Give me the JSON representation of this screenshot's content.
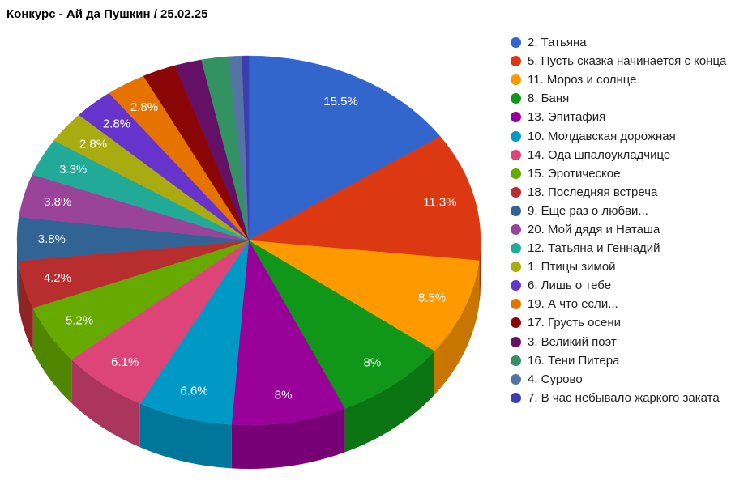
{
  "page": {
    "background": "#FFFFFF"
  },
  "chart_data": {
    "type": "pie",
    "is3D": true,
    "title": "Конкурс - Ай да Пушкин / 25.02.25",
    "legend_position": "right",
    "unit": "%",
    "label_color": "#FFFFFF",
    "legend_text_color": "#222222",
    "slices": [
      {
        "label": "2. Татьяна",
        "value": 15.5,
        "display": "15.5%",
        "color": "#3366CC"
      },
      {
        "label": "5. Пусть сказка начинается с конца",
        "value": 11.3,
        "display": "11.3%",
        "color": "#DC3912"
      },
      {
        "label": "11. Мороз и солнце",
        "value": 8.5,
        "display": "8.5%",
        "color": "#FF9900"
      },
      {
        "label": "8. Баня",
        "value": 8.0,
        "display": "8%",
        "color": "#109618"
      },
      {
        "label": "13. Эпитафия",
        "value": 8.0,
        "display": "8%",
        "color": "#990099"
      },
      {
        "label": "10. Молдавская дорожная",
        "value": 6.6,
        "display": "6.6%",
        "color": "#0099C6"
      },
      {
        "label": "14. Ода шпалоукладчице",
        "value": 6.1,
        "display": "6.1%",
        "color": "#DD4477"
      },
      {
        "label": "15. Эротическое",
        "value": 5.2,
        "display": "5.2%",
        "color": "#66AA00"
      },
      {
        "label": "18. Последняя встреча",
        "value": 4.2,
        "display": "4.2%",
        "color": "#B82E2E"
      },
      {
        "label": "9. Еще раз о любви...",
        "value": 3.8,
        "display": "3.8%",
        "color": "#316395"
      },
      {
        "label": "20. Мой дядя и Наташа",
        "value": 3.8,
        "display": "3.8%",
        "color": "#994499"
      },
      {
        "label": "12. Татьяна и Геннадий",
        "value": 3.3,
        "display": "3.3%",
        "color": "#22AA99"
      },
      {
        "label": "1. Птицы зимой",
        "value": 2.8,
        "display": "2.8%",
        "color": "#AAAA11"
      },
      {
        "label": "6. Лишь о тебе",
        "value": 2.8,
        "display": "2.8%",
        "color": "#6633CC"
      },
      {
        "label": "19. А что если...",
        "value": 2.8,
        "display": "2.8%",
        "color": "#E67300"
      },
      {
        "label": "17. Грусть осени",
        "value": 2.35,
        "display": "",
        "color": "#8B0707"
      },
      {
        "label": "3. Великий поэт",
        "value": 1.88,
        "display": "",
        "color": "#651067"
      },
      {
        "label": "16. Тени Питера",
        "value": 1.88,
        "display": "",
        "color": "#329262"
      },
      {
        "label": "4. Сурово",
        "value": 0.94,
        "display": "",
        "color": "#5574A6"
      },
      {
        "label": "7. В час небывало жаркого заката",
        "value": 0.47,
        "display": "",
        "color": "#3B3EAC"
      }
    ]
  }
}
